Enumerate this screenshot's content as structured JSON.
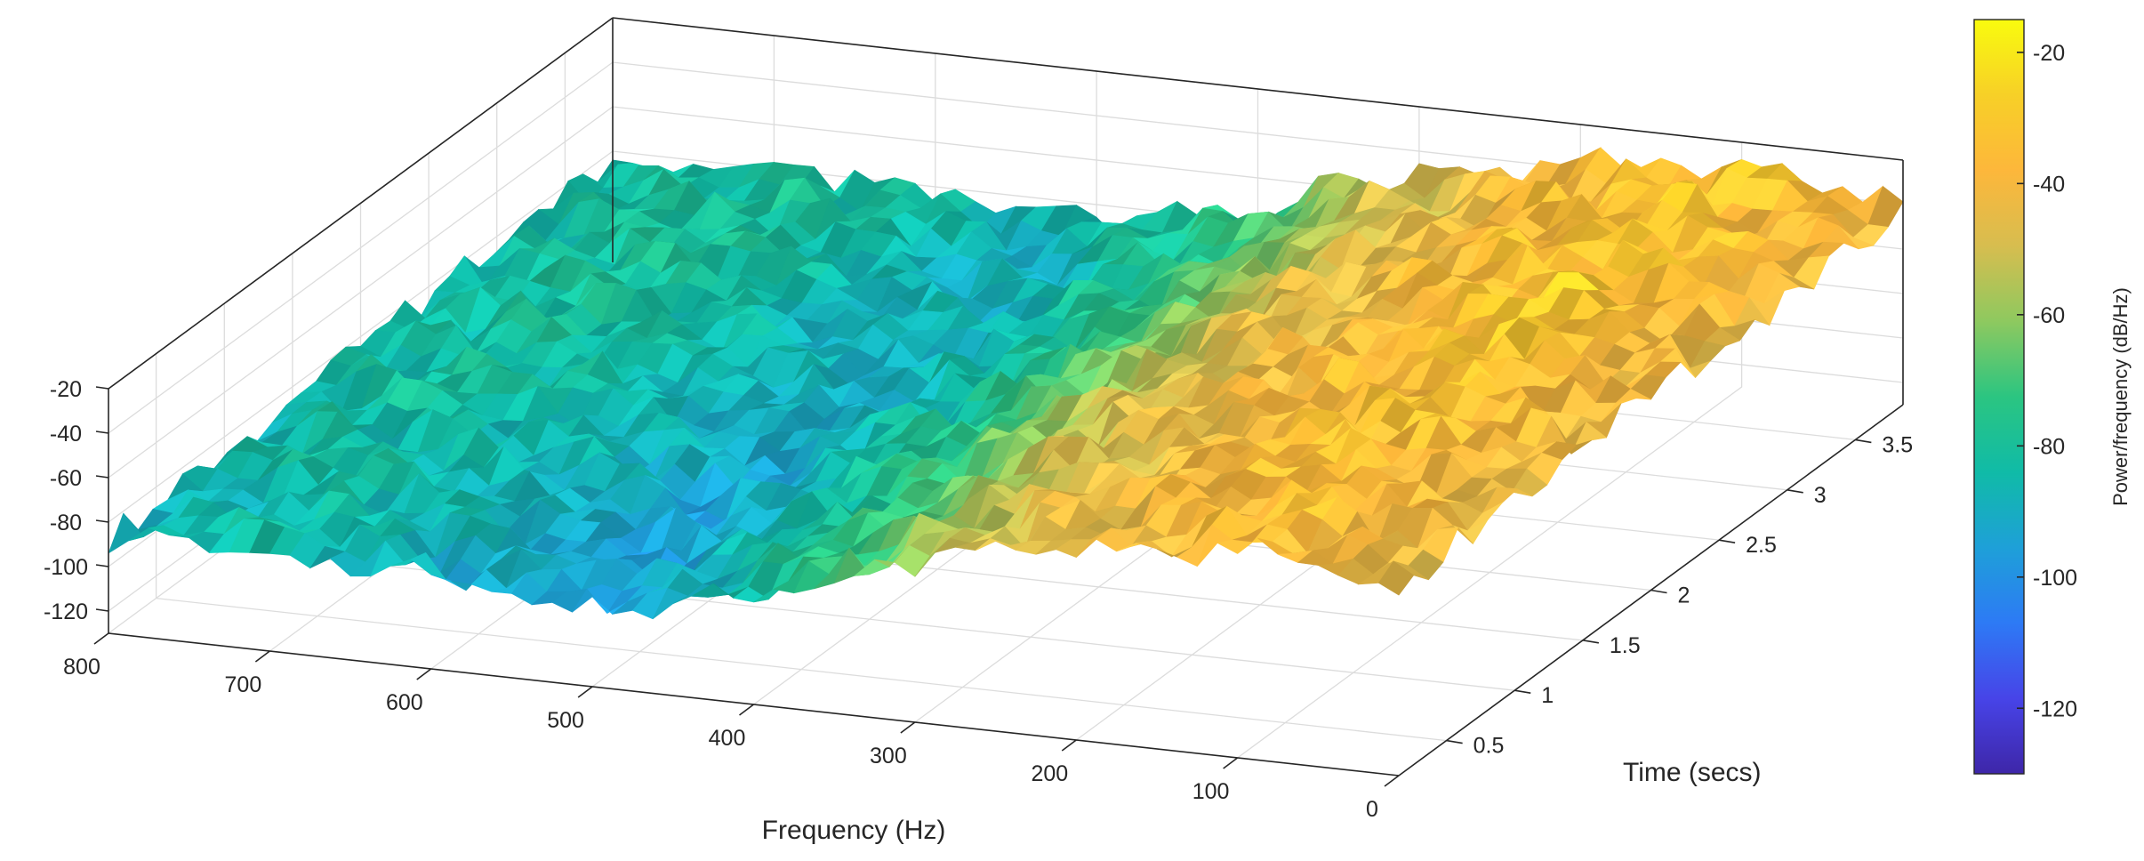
{
  "chart_data": {
    "type": "surface",
    "xlabel": "Frequency (Hz)",
    "ylabel": "Time (secs)",
    "zlabel": "",
    "x_ticks": [
      "0",
      "100",
      "200",
      "300",
      "400",
      "500",
      "600",
      "700",
      "800"
    ],
    "y_ticks": [
      "0.5",
      "1",
      "1.5",
      "2",
      "2.5",
      "3",
      "3.5"
    ],
    "z_ticks": [
      "-20",
      "-40",
      "-60",
      "-80",
      "-100",
      "-120"
    ],
    "xlim": [
      0,
      800
    ],
    "ylim": [
      0.15,
      3.85
    ],
    "zlim": [
      -130,
      -20
    ],
    "colorbar": {
      "label": "Power/frequency (dB/Hz)",
      "ticks": [
        "-20",
        "-40",
        "-60",
        "-80",
        "-100",
        "-120"
      ],
      "range": [
        -130,
        -15
      ],
      "colormap": [
        "#3e26a8",
        "#4744e8",
        "#2d7af5",
        "#1ea0d8",
        "#10bba7",
        "#2bc581",
        "#8ec95f",
        "#d7bd4f",
        "#fdb73b",
        "#f7d027",
        "#f9fb0e"
      ]
    },
    "grid": true,
    "surface": {
      "description_axes": [
        "frequency_hz",
        "time_secs",
        "power_db_per_hz"
      ],
      "frequency_hz": [
        800,
        700,
        600,
        500,
        400,
        300,
        200,
        100,
        0
      ],
      "time_secs": [
        0.15,
        1.0,
        2.0,
        3.0,
        3.85
      ],
      "mean_power_db_per_hz": [
        [
          -88,
          -86,
          -84,
          -83,
          -82
        ],
        [
          -85,
          -82,
          -80,
          -79,
          -78
        ],
        [
          -90,
          -88,
          -86,
          -84,
          -82
        ],
        [
          -96,
          -94,
          -92,
          -90,
          -88
        ],
        [
          -80,
          -78,
          -76,
          -75,
          -74
        ],
        [
          -56,
          -54,
          -52,
          -51,
          -50
        ],
        [
          -44,
          -42,
          -40,
          -39,
          -38
        ],
        [
          -36,
          -34,
          -32,
          -31,
          -30
        ],
        [
          -48,
          -46,
          -44,
          -43,
          -42
        ]
      ]
    }
  }
}
